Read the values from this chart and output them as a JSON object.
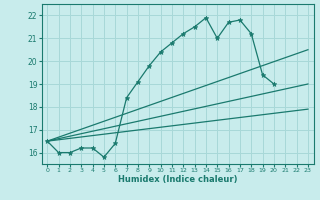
{
  "xlabel": "Humidex (Indice chaleur)",
  "bg_color": "#c8ecec",
  "grid_color": "#a8d8d8",
  "line_color": "#1a7a6e",
  "xlim": [
    -0.5,
    23.5
  ],
  "ylim": [
    15.5,
    22.5
  ],
  "xticks": [
    0,
    1,
    2,
    3,
    4,
    5,
    6,
    7,
    8,
    9,
    10,
    11,
    12,
    13,
    14,
    15,
    16,
    17,
    18,
    19,
    20,
    21,
    22,
    23
  ],
  "yticks": [
    16,
    17,
    18,
    19,
    20,
    21,
    22
  ],
  "series": [
    {
      "x": [
        0,
        1,
        2,
        3,
        4,
        5,
        6,
        7,
        8,
        9,
        10,
        11,
        12,
        13,
        14,
        15,
        16,
        17,
        18,
        19,
        20
      ],
      "y": [
        16.5,
        16.0,
        16.0,
        16.2,
        16.2,
        15.8,
        16.4,
        18.4,
        19.1,
        19.8,
        20.4,
        20.8,
        21.2,
        21.5,
        21.9,
        21.0,
        21.7,
        21.8,
        21.2,
        19.4,
        19.0
      ],
      "marker": true
    },
    {
      "x": [
        0,
        23
      ],
      "y": [
        16.5,
        20.5
      ],
      "marker": false
    },
    {
      "x": [
        0,
        23
      ],
      "y": [
        16.5,
        19.0
      ],
      "marker": false
    },
    {
      "x": [
        0,
        23
      ],
      "y": [
        16.5,
        17.9
      ],
      "marker": false
    }
  ]
}
